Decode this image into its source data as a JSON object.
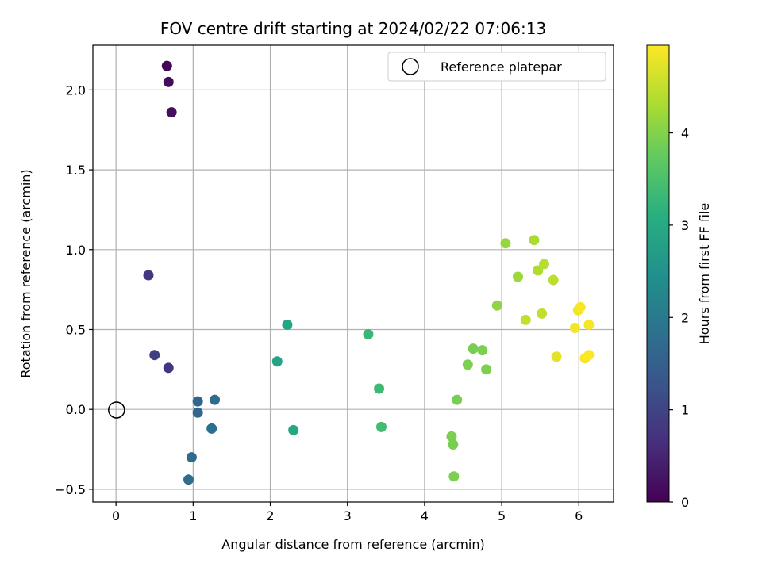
{
  "chart_data": {
    "type": "scatter",
    "title": "FOV centre drift starting at 2024/02/22 07:06:13",
    "xlabel": "Angular distance from reference (arcmin)",
    "ylabel": "Rotation from reference (arcmin)",
    "xlim": [
      -0.3,
      6.45
    ],
    "ylim": [
      -0.58,
      2.28
    ],
    "xticks": [
      0,
      1,
      2,
      3,
      4,
      5,
      6
    ],
    "yticks": [
      -0.5,
      0.0,
      0.5,
      1.0,
      1.5,
      2.0
    ],
    "xtick_labels": [
      "0",
      "1",
      "2",
      "3",
      "4",
      "5",
      "6"
    ],
    "ytick_labels": [
      "−0.5",
      "0.0",
      "0.5",
      "1.0",
      "1.5",
      "2.0"
    ],
    "grid": true,
    "legend": {
      "position": "top-right",
      "entries": [
        {
          "label": "Reference platepar",
          "marker": "hollow-circle",
          "color": "#000000"
        }
      ]
    },
    "reference_point": {
      "x": 0.0,
      "y": 0.0
    },
    "colorbar": {
      "label": "Hours from first FF file",
      "colormap": "viridis",
      "range": [
        0,
        4.95
      ],
      "ticks": [
        0,
        1,
        2,
        3,
        4
      ],
      "tick_labels": [
        "0",
        "1",
        "2",
        "3",
        "4"
      ]
    },
    "points": [
      {
        "x": 0.66,
        "y": 2.15,
        "hours": 0.05
      },
      {
        "x": 0.68,
        "y": 2.05,
        "hours": 0.12
      },
      {
        "x": 0.72,
        "y": 1.86,
        "hours": 0.2
      },
      {
        "x": 0.42,
        "y": 0.84,
        "hours": 0.8
      },
      {
        "x": 0.5,
        "y": 0.34,
        "hours": 0.9
      },
      {
        "x": 0.68,
        "y": 0.26,
        "hours": 0.75
      },
      {
        "x": 1.06,
        "y": 0.05,
        "hours": 1.6
      },
      {
        "x": 1.06,
        "y": -0.02,
        "hours": 1.65
      },
      {
        "x": 1.28,
        "y": 0.06,
        "hours": 1.75
      },
      {
        "x": 1.24,
        "y": -0.12,
        "hours": 1.8
      },
      {
        "x": 0.98,
        "y": -0.3,
        "hours": 1.7
      },
      {
        "x": 0.94,
        "y": -0.44,
        "hours": 1.75
      },
      {
        "x": 2.22,
        "y": 0.53,
        "hours": 2.9
      },
      {
        "x": 2.09,
        "y": 0.3,
        "hours": 2.85
      },
      {
        "x": 2.3,
        "y": -0.13,
        "hours": 2.95
      },
      {
        "x": 3.27,
        "y": 0.47,
        "hours": 3.3
      },
      {
        "x": 3.41,
        "y": 0.13,
        "hours": 3.35
      },
      {
        "x": 3.44,
        "y": -0.11,
        "hours": 3.4
      },
      {
        "x": 4.35,
        "y": -0.17,
        "hours": 3.95
      },
      {
        "x": 4.37,
        "y": -0.22,
        "hours": 3.9
      },
      {
        "x": 4.38,
        "y": -0.42,
        "hours": 3.95
      },
      {
        "x": 4.42,
        "y": 0.06,
        "hours": 3.9
      },
      {
        "x": 4.56,
        "y": 0.28,
        "hours": 3.95
      },
      {
        "x": 4.63,
        "y": 0.38,
        "hours": 3.9
      },
      {
        "x": 4.75,
        "y": 0.37,
        "hours": 3.95
      },
      {
        "x": 4.8,
        "y": 0.25,
        "hours": 3.95
      },
      {
        "x": 4.94,
        "y": 0.65,
        "hours": 4.1
      },
      {
        "x": 5.05,
        "y": 1.04,
        "hours": 4.15
      },
      {
        "x": 5.21,
        "y": 0.83,
        "hours": 4.2
      },
      {
        "x": 5.31,
        "y": 0.56,
        "hours": 4.5
      },
      {
        "x": 5.42,
        "y": 1.06,
        "hours": 4.3
      },
      {
        "x": 5.47,
        "y": 0.87,
        "hours": 4.35
      },
      {
        "x": 5.52,
        "y": 0.6,
        "hours": 4.5
      },
      {
        "x": 5.55,
        "y": 0.91,
        "hours": 4.4
      },
      {
        "x": 5.67,
        "y": 0.81,
        "hours": 4.45
      },
      {
        "x": 5.71,
        "y": 0.33,
        "hours": 4.75
      },
      {
        "x": 5.95,
        "y": 0.51,
        "hours": 4.85
      },
      {
        "x": 5.99,
        "y": 0.62,
        "hours": 4.85
      },
      {
        "x": 6.02,
        "y": 0.64,
        "hours": 4.9
      },
      {
        "x": 6.08,
        "y": 0.32,
        "hours": 4.9
      },
      {
        "x": 6.13,
        "y": 0.53,
        "hours": 4.9
      },
      {
        "x": 6.13,
        "y": 0.34,
        "hours": 4.95
      }
    ]
  }
}
